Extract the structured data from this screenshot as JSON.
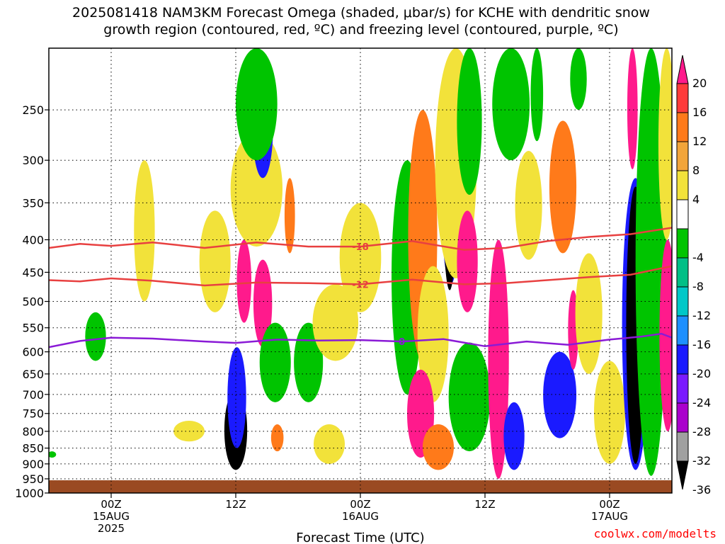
{
  "chart_data": {
    "type": "heatmap",
    "title_line1": "2025081418 NAM3KM Forecast Omega (shaded, μbar/s) for KCHE with dendritic snow",
    "title_line2": "growth region (contoured, red, ºC) and freezing level (contoured, purple, ºC)",
    "xlabel": "Forecast Time (UTC)",
    "watermark": "coolwx.com/modelts",
    "watermark_color": "#ff0000",
    "y_scale": "log-pressure",
    "ylim": [
      1000,
      200
    ],
    "y_ticks": [
      250,
      300,
      350,
      400,
      450,
      500,
      550,
      600,
      650,
      700,
      750,
      800,
      850,
      900,
      950,
      1000
    ],
    "x_unit": "hours since 2025-08-14 18Z",
    "xlim": [
      0,
      60
    ],
    "x_ticks": [
      {
        "hour": 6,
        "lines": [
          "00Z",
          "15AUG",
          "2025"
        ]
      },
      {
        "hour": 18,
        "lines": [
          "12Z"
        ]
      },
      {
        "hour": 30,
        "lines": [
          "00Z",
          "16AUG"
        ]
      },
      {
        "hour": 42,
        "lines": [
          "12Z"
        ]
      },
      {
        "hour": 54,
        "lines": [
          "00Z",
          "17AUG"
        ]
      }
    ],
    "grid": true,
    "ground_color": "#9a4a22",
    "ground_level_hpa": 955,
    "colorbar": {
      "labels": [
        "20",
        "16",
        "12",
        "8",
        "4",
        "-4",
        "-8",
        "-12",
        "-16",
        "-20",
        "-24",
        "-28",
        "-32",
        "-36"
      ],
      "colors": [
        "#ff1a8c",
        "#ff3b3b",
        "#ff7a1a",
        "#f2a53a",
        "#f2e23a",
        "#ffffff",
        "#00c400",
        "#00bf86",
        "#00c8c8",
        "#1e90ff",
        "#1a1aff",
        "#7a1aff",
        "#aa00cc",
        "#a0a0a0",
        "#000000"
      ]
    },
    "contours": [
      {
        "label": "-18",
        "color": "#e84040",
        "x": [
          0,
          3,
          6,
          10,
          15,
          20,
          25,
          30,
          35,
          40,
          44,
          48,
          52,
          56,
          60
        ],
        "p": [
          412,
          406,
          409,
          404,
          412,
          404,
          410,
          410,
          402,
          415,
          412,
          402,
          396,
          392,
          383
        ]
      },
      {
        "label": "-12",
        "color": "#e84040",
        "x": [
          0,
          3,
          6,
          10,
          15,
          20,
          25,
          30,
          35,
          40,
          44,
          48,
          52,
          56,
          60
        ],
        "p": [
          463,
          465,
          460,
          464,
          472,
          467,
          468,
          470,
          462,
          470,
          468,
          463,
          458,
          454,
          440
        ]
      },
      {
        "label": "0",
        "color": "#8a1ad6",
        "x": [
          0,
          3,
          6,
          10,
          15,
          18,
          22,
          26,
          30,
          34,
          38,
          42,
          46,
          50,
          54,
          57,
          59,
          60
        ],
        "p": [
          590,
          577,
          570,
          572,
          578,
          581,
          574,
          576,
          575,
          578,
          573,
          588,
          578,
          585,
          574,
          568,
          562,
          570
        ]
      }
    ],
    "omega_cells": [
      {
        "x": 18.0,
        "p": 790,
        "hw": 1.1,
        "ph": [
          690,
          920
        ],
        "v": -36
      },
      {
        "x": 18.1,
        "p": 720,
        "hw": 0.9,
        "ph": [
          590,
          850
        ],
        "v": -20
      },
      {
        "x": 20.6,
        "p": 500,
        "hw": 0.9,
        "ph": [
          430,
          590
        ],
        "v": 20
      },
      {
        "x": 18.8,
        "p": 470,
        "hw": 0.7,
        "ph": [
          400,
          540
        ],
        "v": 20
      },
      {
        "x": 20.0,
        "p": 330,
        "hw": 2.5,
        "ph": [
          270,
          410
        ],
        "v": 4
      },
      {
        "x": 22.0,
        "p": 820,
        "hw": 0.6,
        "ph": [
          780,
          860
        ],
        "v": 12
      },
      {
        "x": 20.6,
        "p": 260,
        "hw": 1.0,
        "ph": [
          220,
          320
        ],
        "v": -20
      },
      {
        "x": 20.0,
        "p": 230,
        "hw": 2.0,
        "ph": [
          200,
          300
        ],
        "v": -8
      },
      {
        "x": 21.8,
        "p": 620,
        "hw": 1.5,
        "ph": [
          540,
          720
        ],
        "v": -8
      },
      {
        "x": 23.2,
        "p": 360,
        "hw": 0.5,
        "ph": [
          320,
          420
        ],
        "v": 12
      },
      {
        "x": 9.2,
        "p": 380,
        "hw": 1.0,
        "ph": [
          300,
          500
        ],
        "v": 4
      },
      {
        "x": 4.5,
        "p": 560,
        "hw": 1.0,
        "ph": [
          520,
          620
        ],
        "v": -8
      },
      {
        "x": 16.0,
        "p": 420,
        "hw": 1.5,
        "ph": [
          360,
          520
        ],
        "v": 4
      },
      {
        "x": 25.0,
        "p": 610,
        "hw": 1.4,
        "ph": [
          540,
          720
        ],
        "v": -8
      },
      {
        "x": 27.6,
        "p": 530,
        "hw": 2.2,
        "ph": [
          470,
          620
        ],
        "v": 4
      },
      {
        "x": 30.0,
        "p": 420,
        "hw": 2.0,
        "ph": [
          350,
          520
        ],
        "v": 4
      },
      {
        "x": 34.2,
        "p": 400,
        "hw": 0.9,
        "ph": [
          330,
          480
        ],
        "v": -20
      },
      {
        "x": 34.5,
        "p": 420,
        "hw": 1.5,
        "ph": [
          300,
          700
        ],
        "v": -8
      },
      {
        "x": 36.0,
        "p": 380,
        "hw": 1.4,
        "ph": [
          250,
          620
        ],
        "v": 12
      },
      {
        "x": 37.0,
        "p": 560,
        "hw": 1.5,
        "ph": [
          440,
          720
        ],
        "v": 4
      },
      {
        "x": 35.8,
        "p": 760,
        "hw": 1.3,
        "ph": [
          640,
          880
        ],
        "v": 20
      },
      {
        "x": 37.5,
        "p": 850,
        "hw": 1.5,
        "ph": [
          780,
          920
        ],
        "v": 12
      },
      {
        "x": 38.7,
        "p": 300,
        "hw": 1.0,
        "ph": [
          210,
          470
        ],
        "v": -20
      },
      {
        "x": 38.6,
        "p": 370,
        "hw": 0.6,
        "ph": [
          270,
          480
        ],
        "v": -36
      },
      {
        "x": 39.2,
        "p": 280,
        "hw": 2.0,
        "ph": [
          200,
          460
        ],
        "v": 4
      },
      {
        "x": 40.3,
        "p": 430,
        "hw": 1.0,
        "ph": [
          360,
          520
        ],
        "v": 20
      },
      {
        "x": 40.5,
        "p": 240,
        "hw": 1.2,
        "ph": [
          200,
          340
        ],
        "v": -8
      },
      {
        "x": 41.0,
        "p": 720,
        "hw": 1.2,
        "ph": [
          620,
          850
        ],
        "v": -20
      },
      {
        "x": 40.5,
        "p": 680,
        "hw": 2.0,
        "ph": [
          580,
          860
        ],
        "v": -8
      },
      {
        "x": 43.3,
        "p": 620,
        "hw": 1.0,
        "ph": [
          400,
          950
        ],
        "v": 20
      },
      {
        "x": 44.8,
        "p": 820,
        "hw": 1.0,
        "ph": [
          720,
          920
        ],
        "v": -20
      },
      {
        "x": 44.5,
        "p": 240,
        "hw": 1.8,
        "ph": [
          200,
          300
        ],
        "v": -8
      },
      {
        "x": 46.2,
        "p": 350,
        "hw": 1.3,
        "ph": [
          290,
          430
        ],
        "v": 4
      },
      {
        "x": 47.0,
        "p": 250,
        "hw": 0.6,
        "ph": [
          200,
          280
        ],
        "v": -8
      },
      {
        "x": 49.5,
        "p": 350,
        "hw": 1.3,
        "ph": [
          260,
          420
        ],
        "v": 12
      },
      {
        "x": 48.8,
        "p": 700,
        "hw": 0.7,
        "ph": [
          640,
          770
        ],
        "v": -36
      },
      {
        "x": 49.2,
        "p": 720,
        "hw": 1.6,
        "ph": [
          600,
          820
        ],
        "v": -20
      },
      {
        "x": 50.5,
        "p": 560,
        "hw": 0.5,
        "ph": [
          480,
          640
        ],
        "v": 20
      },
      {
        "x": 52.0,
        "p": 500,
        "hw": 1.3,
        "ph": [
          420,
          650
        ],
        "v": 4
      },
      {
        "x": 51.0,
        "p": 200,
        "hw": 0.8,
        "ph": [
          200,
          250
        ],
        "v": -8
      },
      {
        "x": 54.0,
        "p": 780,
        "hw": 1.5,
        "ph": [
          620,
          900
        ],
        "v": 4
      },
      {
        "x": 56.2,
        "p": 260,
        "hw": 0.5,
        "ph": [
          200,
          310
        ],
        "v": 20
      },
      {
        "x": 56.5,
        "p": 600,
        "hw": 1.3,
        "ph": [
          320,
          920
        ],
        "v": -20
      },
      {
        "x": 56.5,
        "p": 600,
        "hw": 0.9,
        "ph": [
          330,
          900
        ],
        "v": -36
      },
      {
        "x": 58.0,
        "p": 400,
        "hw": 1.5,
        "ph": [
          200,
          940
        ],
        "v": -8
      },
      {
        "x": 59.6,
        "p": 550,
        "hw": 0.8,
        "ph": [
          400,
          800
        ],
        "v": 20
      },
      {
        "x": 59.5,
        "p": 300,
        "hw": 0.8,
        "ph": [
          200,
          400
        ],
        "v": 4
      },
      {
        "x": 13.5,
        "p": 800,
        "hw": 1.5,
        "ph": [
          770,
          830
        ],
        "v": 4
      },
      {
        "x": 27.0,
        "p": 840,
        "hw": 1.5,
        "ph": [
          780,
          900
        ],
        "v": 4
      },
      {
        "x": 0.3,
        "p": 870,
        "hw": 0.4,
        "ph": [
          860,
          880
        ],
        "v": -8
      }
    ]
  }
}
